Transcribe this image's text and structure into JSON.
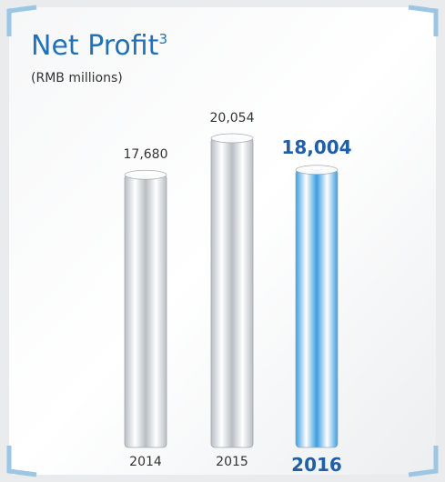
{
  "chart_data": {
    "type": "bar",
    "title": "Net Profit",
    "title_note": "3",
    "subtitle": "(RMB millions)",
    "categories": [
      "2014",
      "2015",
      "2016"
    ],
    "values": [
      17680,
      20054,
      18004
    ],
    "value_labels": [
      "17,680",
      "20,054",
      "18,004"
    ],
    "colors": [
      "#b9bec4",
      "#b9bec4",
      "#3a9ee0"
    ],
    "highlight_index": 2
  }
}
